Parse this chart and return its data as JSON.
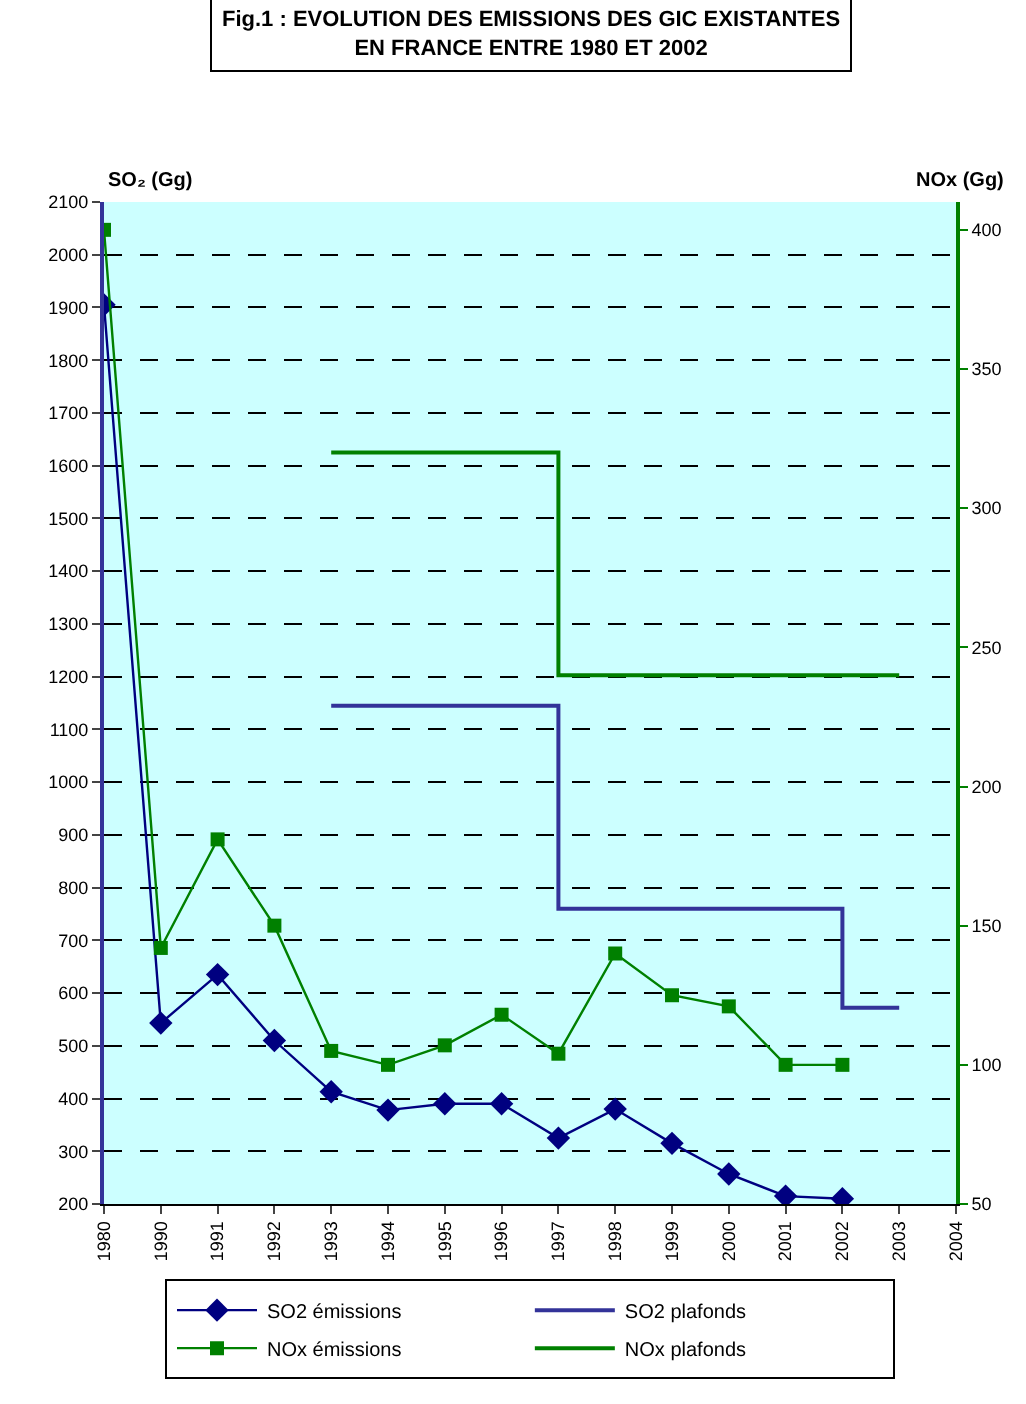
{
  "chart_data": {
    "type": "line",
    "title": "Fig.1 : EVOLUTION DES EMISSIONS DES GIC EXISTANTES\nEN FRANCE ENTRE 1980 ET 2002",
    "ylabel": "SO₂ (Gg)",
    "y2label": "NOx (Gg)",
    "categories": [
      "1980",
      "1990",
      "1991",
      "1992",
      "1993",
      "1994",
      "1995",
      "1996",
      "1997",
      "1998",
      "1999",
      "2000",
      "2001",
      "2002",
      "2003",
      "2004"
    ],
    "ylim": [
      200,
      2100
    ],
    "yticks": [
      200,
      300,
      400,
      500,
      600,
      700,
      800,
      900,
      1000,
      1100,
      1200,
      1300,
      1400,
      1500,
      1600,
      1700,
      1800,
      1900,
      2000,
      2100
    ],
    "y2lim": [
      50,
      410
    ],
    "y2ticks": [
      50,
      100,
      150,
      200,
      250,
      300,
      350,
      400
    ],
    "grid": "y",
    "legend": "bottom",
    "series": [
      {
        "name": "SO2 émissions",
        "marker": "diamond",
        "color": "#000080",
        "values": [
          1905,
          543,
          635,
          510,
          413,
          378,
          390,
          390,
          325,
          380,
          315,
          257,
          215,
          210,
          null,
          null
        ]
      },
      {
        "name": "SO2 plafonds",
        "type": "step",
        "marker": "none",
        "color": "#333399",
        "values": [
          null,
          null,
          null,
          null,
          1145,
          null,
          null,
          null,
          760,
          null,
          null,
          null,
          null,
          572,
          572,
          null
        ]
      },
      {
        "name": "NOx émissions",
        "marker": "square",
        "axis": "y2",
        "color": "#008000",
        "values": [
          400,
          142,
          181,
          150,
          105,
          100,
          107,
          118,
          104,
          140,
          125,
          121,
          100,
          100,
          null,
          null
        ]
      },
      {
        "name": "NOx plafonds",
        "type": "step",
        "marker": "none",
        "axis": "y2",
        "color": "#008000",
        "values": [
          null,
          null,
          null,
          null,
          320,
          null,
          null,
          null,
          240,
          null,
          null,
          null,
          null,
          null,
          240,
          null
        ]
      }
    ]
  }
}
